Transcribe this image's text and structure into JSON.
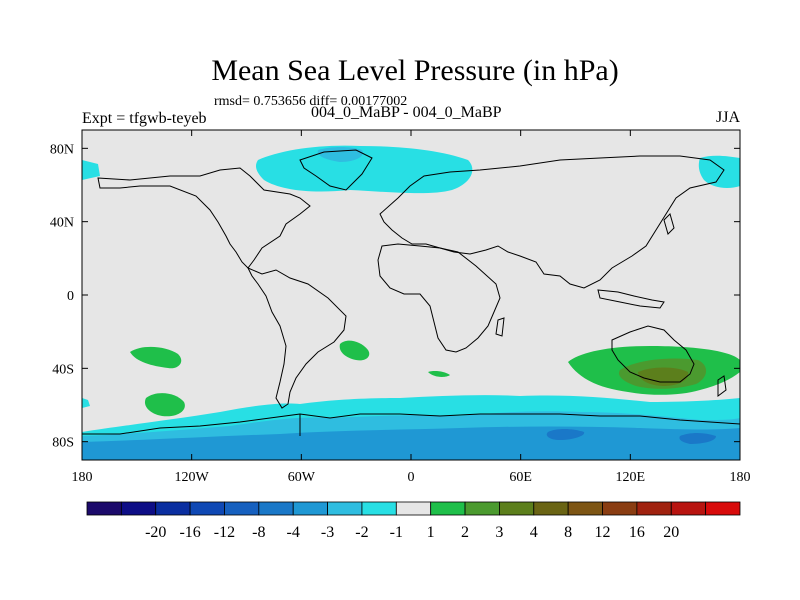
{
  "title": "Mean Sea Level Pressure (in hPa)",
  "rmsd_text": "rmsd= 0.753656 diff= 0.00177002",
  "expt_text": "Expt = tfgwb-teyeb",
  "expt_diff": "004_0_MaBP - 004_0_MaBP",
  "season": "JJA",
  "chart_data": {
    "type": "heatmap",
    "title": "Mean Sea Level Pressure (in hPa)",
    "projection": "cylindrical equidistant",
    "xlim": [
      -180,
      180
    ],
    "ylim": [
      -90,
      90
    ],
    "x_ticks": [
      -180,
      -120,
      -60,
      0,
      60,
      120,
      180
    ],
    "x_tick_labels": [
      "180",
      "120W",
      "60W",
      "0",
      "60E",
      "120E",
      "180"
    ],
    "y_ticks": [
      80,
      40,
      0,
      -40,
      -80
    ],
    "y_tick_labels": [
      "80N",
      "40N",
      "0",
      "40S",
      "80S"
    ],
    "colorbar": {
      "colors": [
        "#1c0a6b",
        "#0e0e86",
        "#0a2ea0",
        "#0f48b4",
        "#1660bf",
        "#1a78c8",
        "#1f98d4",
        "#2fbde0",
        "#28dfe4",
        "#e6e6e6",
        "#1fbf4a",
        "#4b9a2f",
        "#5c7f1c",
        "#6a6414",
        "#7d5514",
        "#8a3d12",
        "#a0220f",
        "#b81410",
        "#d80b0b"
      ],
      "labels": [
        "-20",
        "-16",
        "-12",
        "-8",
        "-4",
        "-3",
        "-2",
        "-1",
        "1",
        "2",
        "3",
        "4",
        "8",
        "12",
        "16",
        "20"
      ],
      "missing_color": "#e6e6e6"
    },
    "regions": [
      {
        "name": "arctic-negative",
        "level": "-2 to -1"
      },
      {
        "name": "greenland-sea-negative",
        "level": "-2 to -1"
      },
      {
        "name": "bering-negative",
        "level": "-2 to -1"
      },
      {
        "name": "south-pacific-positive-a",
        "level": "1 to 2"
      },
      {
        "name": "south-pacific-positive-b",
        "level": "1 to 2"
      },
      {
        "name": "south-atlantic-positive",
        "level": "1 to 2"
      },
      {
        "name": "australia-positive",
        "level": "1 to 2"
      },
      {
        "name": "australia-core",
        "level": "2 to 3"
      },
      {
        "name": "australia-inner",
        "level": "3 to 4"
      },
      {
        "name": "southern-ocean-negative",
        "level": "-2 to -1"
      },
      {
        "name": "antarctic-negative",
        "level": "-3 to -2"
      },
      {
        "name": "antarctic-deep",
        "level": "-4 to -3"
      }
    ]
  }
}
